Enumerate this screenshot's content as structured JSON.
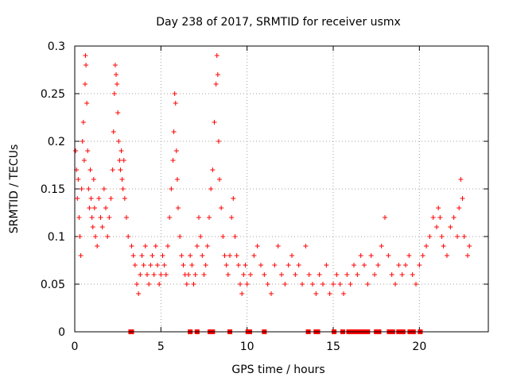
{
  "chart_data": {
    "type": "scatter",
    "title": "Day 238 of 2017, SRMTID for receiver usmx",
    "xlabel": "GPS time / hours",
    "ylabel": "SRMTID / TECUs",
    "xlim": [
      0,
      24
    ],
    "ylim": [
      0,
      0.3
    ],
    "x_ticks": [
      0,
      5,
      10,
      15,
      20
    ],
    "y_ticks": [
      0,
      0.05,
      0.1,
      0.15,
      0.2,
      0.25,
      0.3
    ],
    "x_tick_labels": [
      "0",
      "5",
      "10",
      "15",
      "20"
    ],
    "y_tick_labels": [
      "0",
      "0.05",
      "0.1",
      "0.15",
      "0.2",
      "0.25",
      "0.3"
    ],
    "grid": true,
    "marker": "plus",
    "color": "#ff0000",
    "series": [
      {
        "name": "SRMTID",
        "points": [
          [
            0.05,
            0.19
          ],
          [
            0.1,
            0.17
          ],
          [
            0.15,
            0.14
          ],
          [
            0.2,
            0.16
          ],
          [
            0.25,
            0.12
          ],
          [
            0.3,
            0.1
          ],
          [
            0.35,
            0.08
          ],
          [
            0.4,
            0.15
          ],
          [
            0.45,
            0.2
          ],
          [
            0.5,
            0.22
          ],
          [
            0.55,
            0.18
          ],
          [
            0.6,
            0.26
          ],
          [
            0.62,
            0.29
          ],
          [
            0.65,
            0.28
          ],
          [
            0.7,
            0.24
          ],
          [
            0.75,
            0.19
          ],
          [
            0.8,
            0.15
          ],
          [
            0.85,
            0.13
          ],
          [
            0.9,
            0.17
          ],
          [
            0.95,
            0.14
          ],
          [
            1.0,
            0.12
          ],
          [
            1.05,
            0.11
          ],
          [
            1.1,
            0.16
          ],
          [
            1.15,
            0.13
          ],
          [
            1.2,
            0.1
          ],
          [
            1.3,
            0.09
          ],
          [
            1.4,
            0.14
          ],
          [
            1.5,
            0.12
          ],
          [
            1.6,
            0.11
          ],
          [
            1.7,
            0.15
          ],
          [
            1.8,
            0.13
          ],
          [
            1.9,
            0.1
          ],
          [
            2.0,
            0.12
          ],
          [
            2.1,
            0.14
          ],
          [
            2.2,
            0.17
          ],
          [
            2.25,
            0.21
          ],
          [
            2.3,
            0.25
          ],
          [
            2.35,
            0.28
          ],
          [
            2.4,
            0.27
          ],
          [
            2.45,
            0.26
          ],
          [
            2.5,
            0.23
          ],
          [
            2.55,
            0.2
          ],
          [
            2.6,
            0.18
          ],
          [
            2.65,
            0.17
          ],
          [
            2.7,
            0.19
          ],
          [
            2.75,
            0.16
          ],
          [
            2.8,
            0.15
          ],
          [
            2.85,
            0.18
          ],
          [
            2.9,
            0.14
          ],
          [
            3.0,
            0.12
          ],
          [
            3.1,
            0.1
          ],
          [
            3.3,
            0.09
          ],
          [
            3.4,
            0.08
          ],
          [
            3.5,
            0.07
          ],
          [
            3.6,
            0.05
          ],
          [
            3.7,
            0.04
          ],
          [
            3.8,
            0.06
          ],
          [
            3.9,
            0.08
          ],
          [
            4.0,
            0.07
          ],
          [
            4.1,
            0.09
          ],
          [
            4.2,
            0.06
          ],
          [
            4.3,
            0.05
          ],
          [
            4.4,
            0.07
          ],
          [
            4.5,
            0.08
          ],
          [
            4.6,
            0.06
          ],
          [
            4.7,
            0.09
          ],
          [
            4.8,
            0.07
          ],
          [
            4.9,
            0.05
          ],
          [
            5.0,
            0.06
          ],
          [
            5.1,
            0.08
          ],
          [
            5.2,
            0.07
          ],
          [
            5.3,
            0.06
          ],
          [
            5.4,
            0.09
          ],
          [
            5.5,
            0.12
          ],
          [
            5.6,
            0.15
          ],
          [
            5.7,
            0.18
          ],
          [
            5.75,
            0.21
          ],
          [
            5.8,
            0.25
          ],
          [
            5.85,
            0.24
          ],
          [
            5.9,
            0.19
          ],
          [
            5.95,
            0.16
          ],
          [
            6.0,
            0.13
          ],
          [
            6.1,
            0.1
          ],
          [
            6.2,
            0.08
          ],
          [
            6.3,
            0.07
          ],
          [
            6.4,
            0.06
          ],
          [
            6.5,
            0.05
          ],
          [
            6.6,
            0.06
          ],
          [
            6.7,
            0.08
          ],
          [
            6.8,
            0.07
          ],
          [
            6.9,
            0.05
          ],
          [
            7.0,
            0.06
          ],
          [
            7.1,
            0.09
          ],
          [
            7.2,
            0.12
          ],
          [
            7.3,
            0.1
          ],
          [
            7.4,
            0.08
          ],
          [
            7.5,
            0.06
          ],
          [
            7.6,
            0.07
          ],
          [
            7.7,
            0.09
          ],
          [
            7.8,
            0.12
          ],
          [
            7.9,
            0.15
          ],
          [
            8.0,
            0.17
          ],
          [
            8.1,
            0.22
          ],
          [
            8.2,
            0.26
          ],
          [
            8.25,
            0.29
          ],
          [
            8.3,
            0.27
          ],
          [
            8.35,
            0.2
          ],
          [
            8.4,
            0.16
          ],
          [
            8.5,
            0.13
          ],
          [
            8.6,
            0.1
          ],
          [
            8.7,
            0.08
          ],
          [
            8.8,
            0.07
          ],
          [
            8.9,
            0.06
          ],
          [
            9.0,
            0.08
          ],
          [
            9.1,
            0.12
          ],
          [
            9.2,
            0.14
          ],
          [
            9.3,
            0.1
          ],
          [
            9.4,
            0.08
          ],
          [
            9.5,
            0.07
          ],
          [
            9.6,
            0.05
          ],
          [
            9.7,
            0.04
          ],
          [
            9.8,
            0.06
          ],
          [
            9.9,
            0.07
          ],
          [
            10.0,
            0.05
          ],
          [
            10.2,
            0.06
          ],
          [
            10.4,
            0.08
          ],
          [
            10.6,
            0.09
          ],
          [
            10.8,
            0.07
          ],
          [
            11.0,
            0.06
          ],
          [
            11.2,
            0.05
          ],
          [
            11.4,
            0.04
          ],
          [
            11.6,
            0.07
          ],
          [
            11.8,
            0.09
          ],
          [
            12.0,
            0.06
          ],
          [
            12.2,
            0.05
          ],
          [
            12.4,
            0.07
          ],
          [
            12.6,
            0.08
          ],
          [
            12.8,
            0.06
          ],
          [
            13.0,
            0.07
          ],
          [
            13.2,
            0.05
          ],
          [
            13.4,
            0.09
          ],
          [
            13.6,
            0.06
          ],
          [
            13.8,
            0.05
          ],
          [
            14.0,
            0.04
          ],
          [
            14.2,
            0.06
          ],
          [
            14.4,
            0.05
          ],
          [
            14.6,
            0.07
          ],
          [
            14.8,
            0.04
          ],
          [
            15.0,
            0.05
          ],
          [
            15.2,
            0.06
          ],
          [
            15.4,
            0.05
          ],
          [
            15.6,
            0.04
          ],
          [
            15.8,
            0.06
          ],
          [
            16.0,
            0.05
          ],
          [
            16.2,
            0.07
          ],
          [
            16.4,
            0.06
          ],
          [
            16.6,
            0.08
          ],
          [
            16.8,
            0.07
          ],
          [
            17.0,
            0.05
          ],
          [
            17.2,
            0.08
          ],
          [
            17.4,
            0.06
          ],
          [
            17.6,
            0.07
          ],
          [
            17.8,
            0.09
          ],
          [
            18.0,
            0.12
          ],
          [
            18.2,
            0.08
          ],
          [
            18.4,
            0.06
          ],
          [
            18.6,
            0.05
          ],
          [
            18.8,
            0.07
          ],
          [
            19.0,
            0.06
          ],
          [
            19.2,
            0.07
          ],
          [
            19.4,
            0.08
          ],
          [
            19.6,
            0.06
          ],
          [
            19.8,
            0.05
          ],
          [
            20.0,
            0.07
          ],
          [
            20.2,
            0.08
          ],
          [
            20.4,
            0.09
          ],
          [
            20.6,
            0.1
          ],
          [
            20.8,
            0.12
          ],
          [
            21.0,
            0.11
          ],
          [
            21.1,
            0.13
          ],
          [
            21.2,
            0.12
          ],
          [
            21.3,
            0.1
          ],
          [
            21.4,
            0.09
          ],
          [
            21.6,
            0.08
          ],
          [
            21.8,
            0.11
          ],
          [
            22.0,
            0.12
          ],
          [
            22.2,
            0.1
          ],
          [
            22.3,
            0.13
          ],
          [
            22.4,
            0.16
          ],
          [
            22.5,
            0.14
          ],
          [
            22.6,
            0.1
          ],
          [
            22.8,
            0.08
          ],
          [
            22.9,
            0.09
          ]
        ]
      }
    ],
    "zero_markers_x": [
      3.25,
      3.3,
      6.7,
      7.1,
      7.85,
      8.0,
      9.0,
      10.05,
      10.15,
      11.0,
      13.55,
      14.0,
      14.1,
      15.05,
      15.55,
      15.9,
      16.05,
      16.25,
      16.5,
      16.7,
      16.85,
      17.0,
      17.5,
      17.65,
      18.25,
      18.45,
      18.8,
      18.9,
      19.05,
      19.45,
      19.65,
      20.05
    ]
  }
}
